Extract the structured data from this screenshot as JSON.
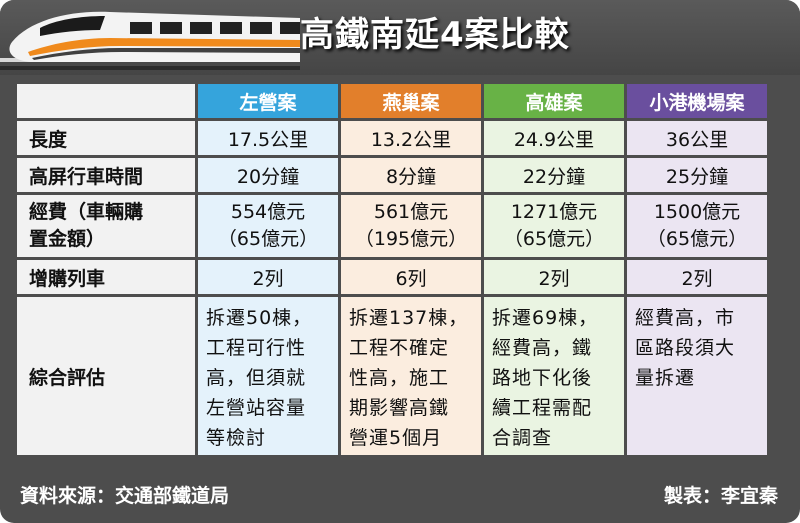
{
  "title": "高鐵南延4案比較",
  "columns": [
    "左營案",
    "燕巢案",
    "高雄案",
    "小港機場案"
  ],
  "rows": [
    {
      "label": "長度",
      "values": [
        "17.5公里",
        "13.2公里",
        "24.9公里",
        "36公里"
      ]
    },
    {
      "label": "高屏行車時間",
      "values": [
        "20分鐘",
        "8分鐘",
        "22分鐘",
        "25分鐘"
      ]
    },
    {
      "label_lines": [
        "經費（車輛購",
        "置金額）"
      ],
      "cost": [
        "554億元",
        "561億元",
        "1271億元",
        "1500億元"
      ],
      "vehicle": [
        "（65億元）",
        "（195億元）",
        "（65億元）",
        "（65億元）"
      ]
    },
    {
      "label": "增購列車",
      "values": [
        "2列",
        "6列",
        "2列",
        "2列"
      ]
    },
    {
      "label": "綜合評估",
      "lines": [
        [
          "拆遷50棟，",
          "工程可行性",
          "高，但須就",
          "左營站容量",
          "等檢討"
        ],
        [
          "拆遷137棟，",
          "工程不確定",
          "性高，施工",
          "期影響高鐵",
          "營運5個月"
        ],
        [
          "拆遷69棟，",
          "經費高，鐵",
          "路地下化後",
          "續工程需配",
          "合調查"
        ],
        [
          "經費高，市",
          "區路段須大",
          "量拆遷"
        ]
      ]
    }
  ],
  "footer": {
    "source": "資料來源：交通部鐵道局",
    "credit": "製表：李宜秦"
  }
}
